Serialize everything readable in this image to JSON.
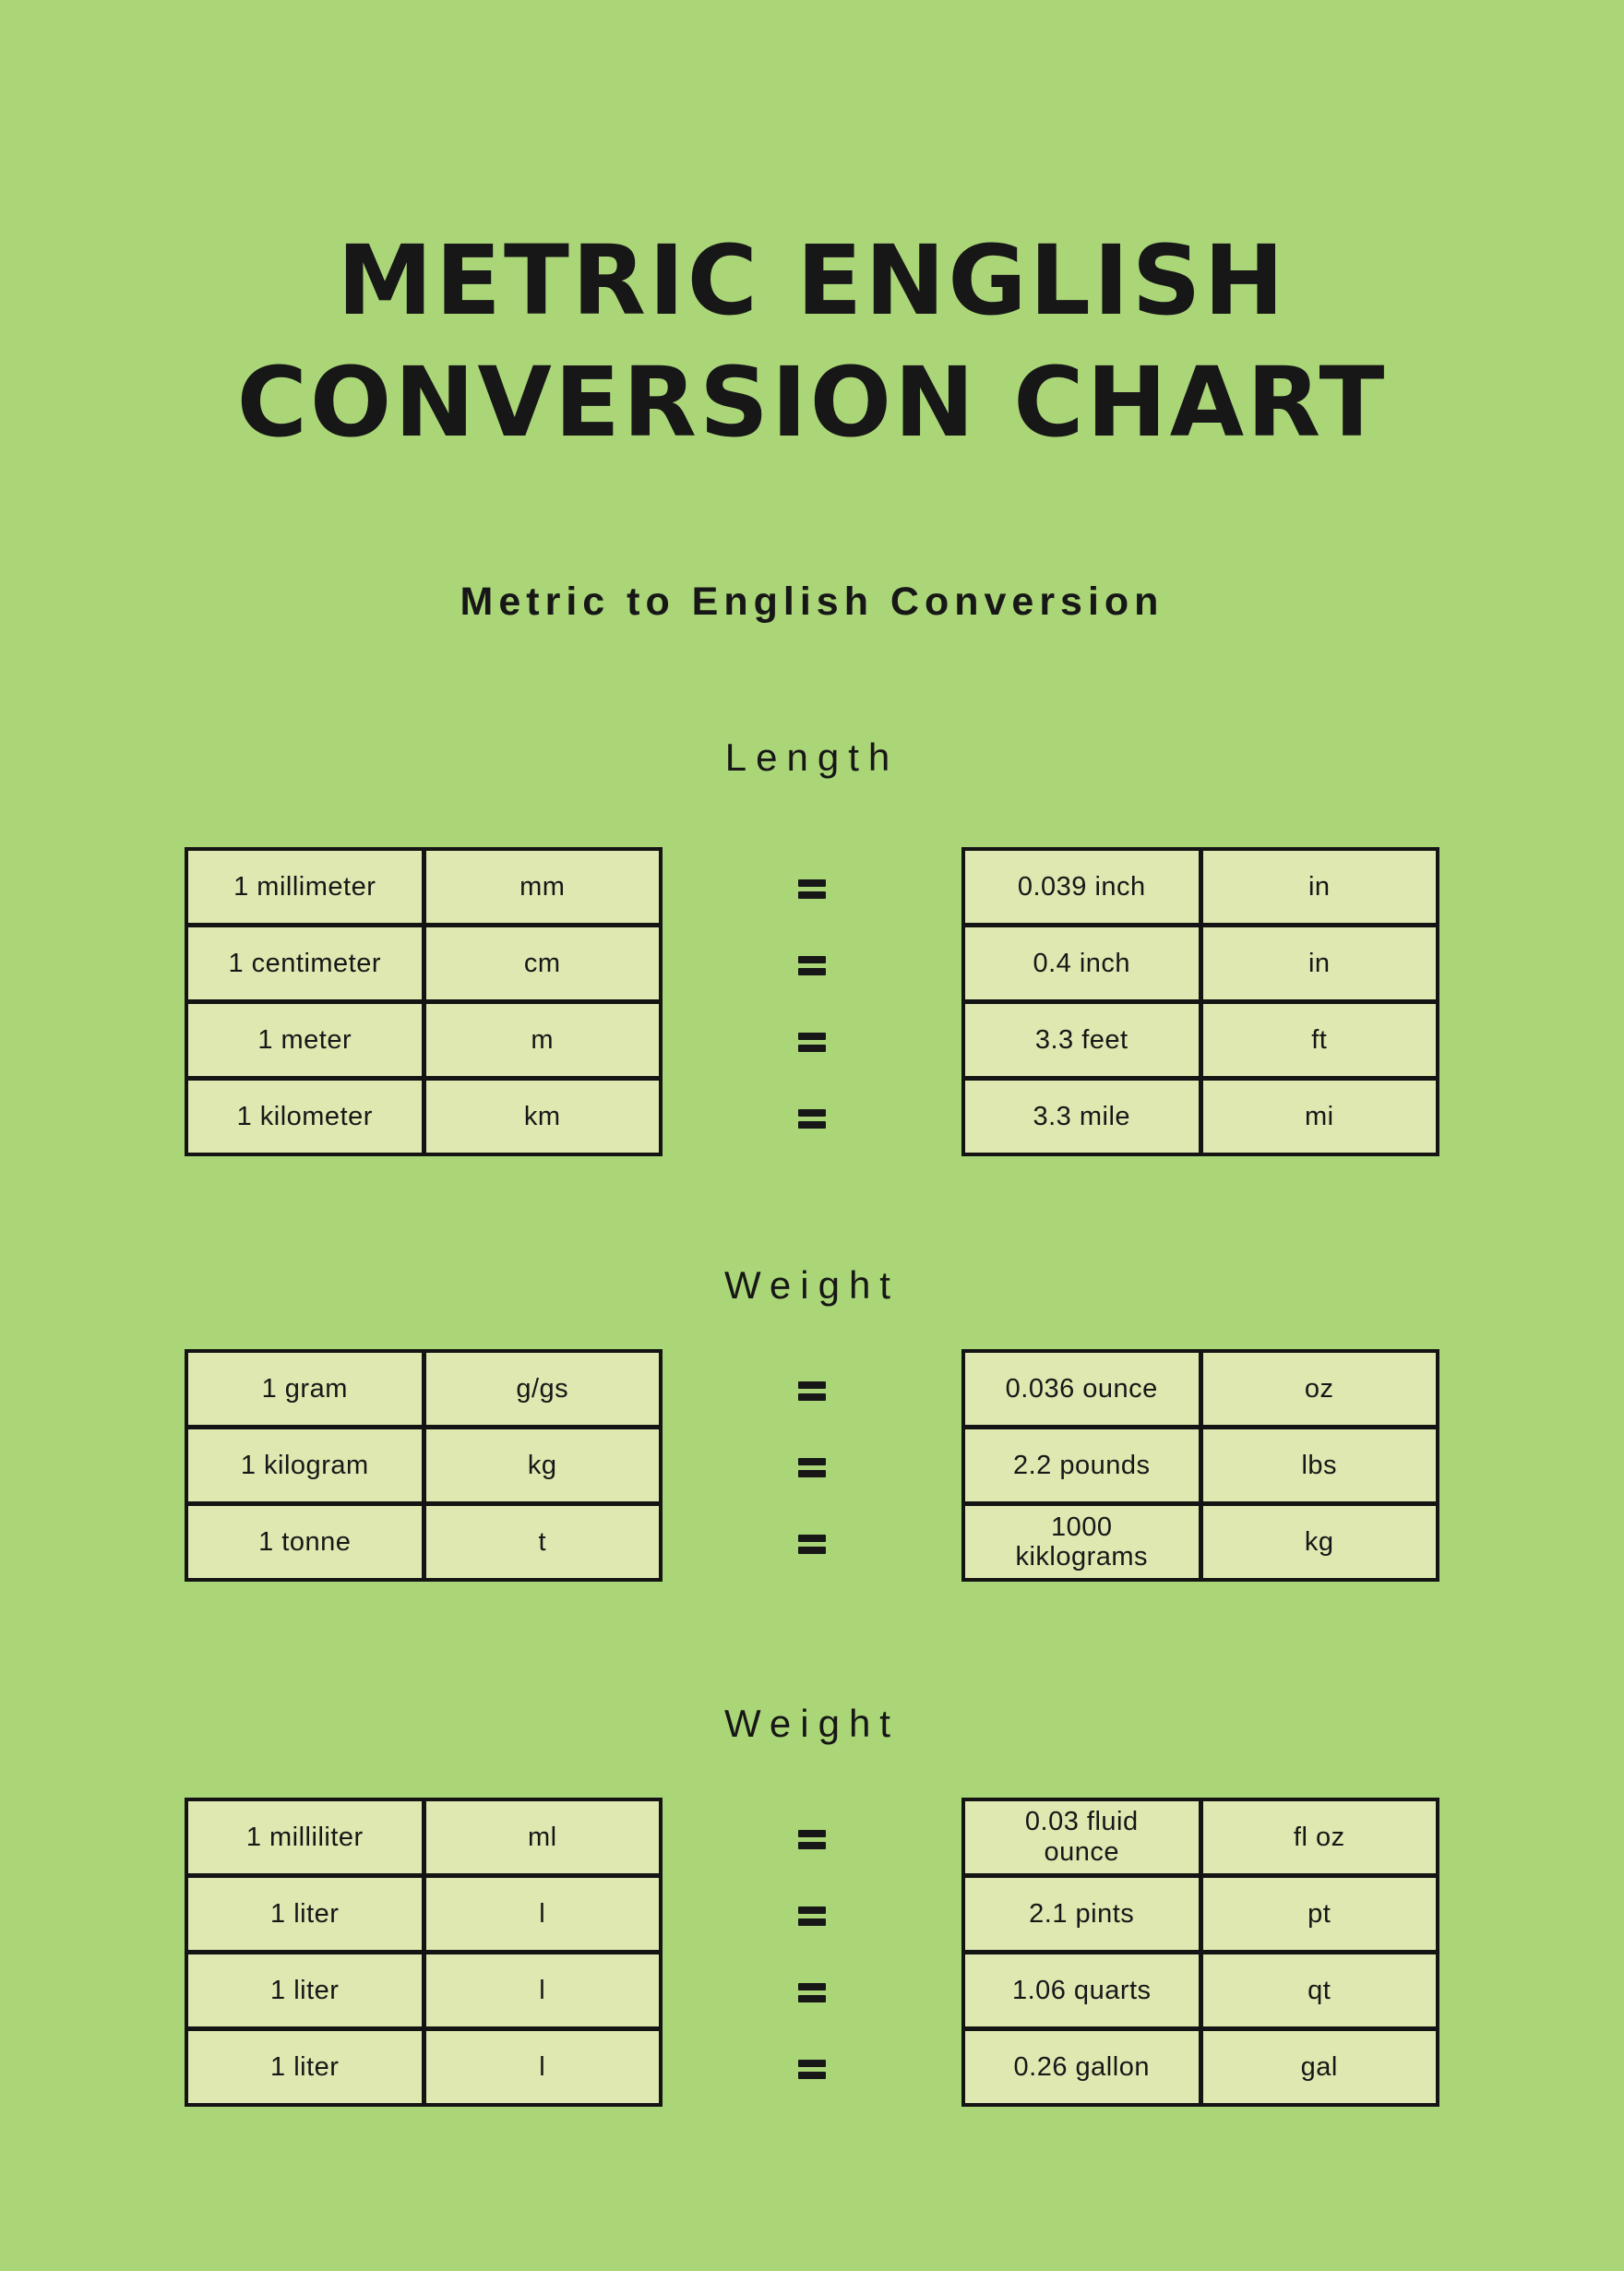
{
  "theme": {
    "background": "#abd678",
    "cell_background": "#dee8b0",
    "line_color": "#141414",
    "text_color": "#171717"
  },
  "title": {
    "line1": "METRIC ENGLISH",
    "line2": "CONVERSION CHART"
  },
  "subtitle": "Metric to English Conversion",
  "equals_symbol": "=",
  "chart_data": [
    {
      "type": "table",
      "title": "Length",
      "rows": [
        {
          "metric": "1 millimeter",
          "metric_abbr": "mm",
          "english": "0.039 inch",
          "english_abbr": "in"
        },
        {
          "metric": "1 centimeter",
          "metric_abbr": "cm",
          "english": "0.4 inch",
          "english_abbr": "in"
        },
        {
          "metric": "1 meter",
          "metric_abbr": "m",
          "english": "3.3 feet",
          "english_abbr": "ft"
        },
        {
          "metric": "1 kilometer",
          "metric_abbr": "km",
          "english": "3.3 mile",
          "english_abbr": "mi"
        }
      ]
    },
    {
      "type": "table",
      "title": "Weight",
      "rows": [
        {
          "metric": "1 gram",
          "metric_abbr": "g/gs",
          "english": "0.036 ounce",
          "english_abbr": "oz"
        },
        {
          "metric": "1 kilogram",
          "metric_abbr": "kg",
          "english": "2.2 pounds",
          "english_abbr": "lbs"
        },
        {
          "metric": "1 tonne",
          "metric_abbr": "t",
          "english": "1000\nkiklograms",
          "english_abbr": "kg"
        }
      ]
    },
    {
      "type": "table",
      "title": "Weight",
      "rows": [
        {
          "metric": "1 milliliter",
          "metric_abbr": "ml",
          "english": "0.03 fluid\nounce",
          "english_abbr": "fl oz"
        },
        {
          "metric": "1 liter",
          "metric_abbr": "l",
          "english": "2.1 pints",
          "english_abbr": "pt"
        },
        {
          "metric": "1 liter",
          "metric_abbr": "l",
          "english": "1.06 quarts",
          "english_abbr": "qt"
        },
        {
          "metric": "1 liter",
          "metric_abbr": "l",
          "english": "0.26 gallon",
          "english_abbr": "gal"
        }
      ]
    }
  ]
}
